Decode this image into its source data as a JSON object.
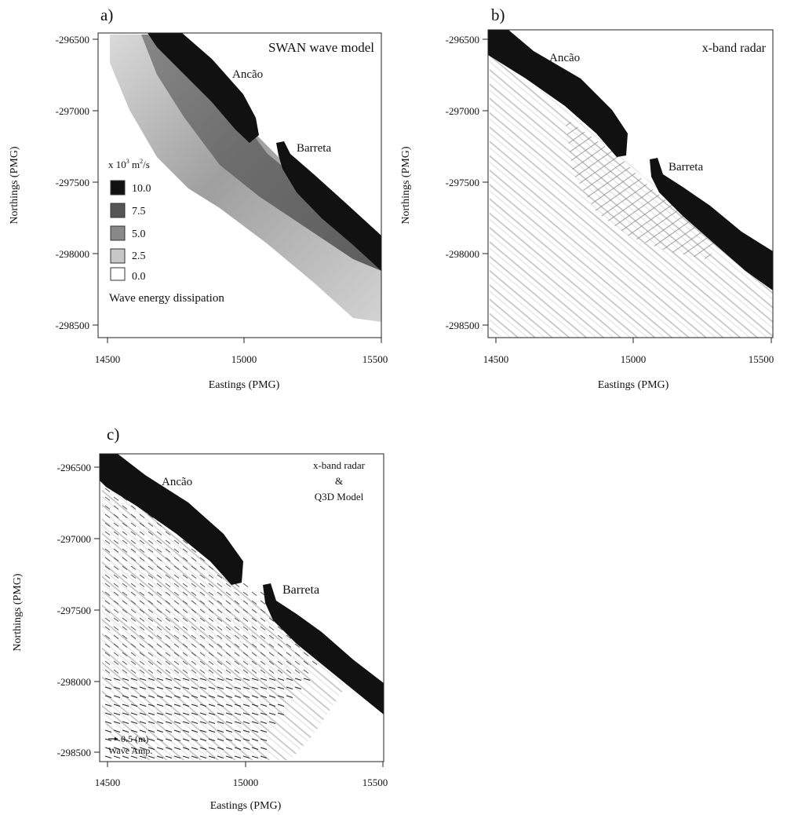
{
  "panels": [
    {
      "letter": "a)",
      "title_lines": [
        "SWAN wave model"
      ],
      "xlabel": "Eastings (PMG)",
      "ylabel": "Northings (PMG)",
      "xticks": [
        "14500",
        "15000",
        "15500"
      ],
      "yticks": [
        "-296500",
        "-297000",
        "-297500",
        "-298000",
        "-298500"
      ],
      "places": [
        "Ancão",
        "Barreta"
      ],
      "legend": {
        "unit_prefix": "x 10",
        "unit_exp": "3",
        "unit_suffix": " m",
        "unit_exp2": "2",
        "unit_tail": "/s",
        "levels": [
          "10.0",
          "7.5",
          "5.0",
          "2.5",
          "0.0"
        ],
        "caption": "Wave energy dissipation"
      }
    },
    {
      "letter": "b)",
      "title_lines": [
        "x-band radar"
      ],
      "xlabel": "Eastings (PMG)",
      "ylabel": "Northings (PMG)",
      "xticks": [
        "14500",
        "15000",
        "15500"
      ],
      "yticks": [
        "-296500",
        "-297000",
        "-297500",
        "-298000",
        "-298500"
      ],
      "places": [
        "Ancão",
        "Barreta"
      ]
    },
    {
      "letter": "c)",
      "title_lines": [
        "x-band radar",
        "&",
        "Q3D Model"
      ],
      "xlabel": "Eastings (PMG)",
      "ylabel": "Northings (PMG)",
      "xticks": [
        "14500",
        "15000",
        "15500"
      ],
      "yticks": [
        "-296500",
        "-297000",
        "-297500",
        "-298000",
        "-298500"
      ],
      "places": [
        "Ancão",
        "Barreta"
      ],
      "scale_label": "0.5 (m)",
      "scale_caption": "Wave Amp."
    }
  ],
  "colors": {
    "land": "#111111",
    "axis": "#222222",
    "background": "#ffffff"
  }
}
